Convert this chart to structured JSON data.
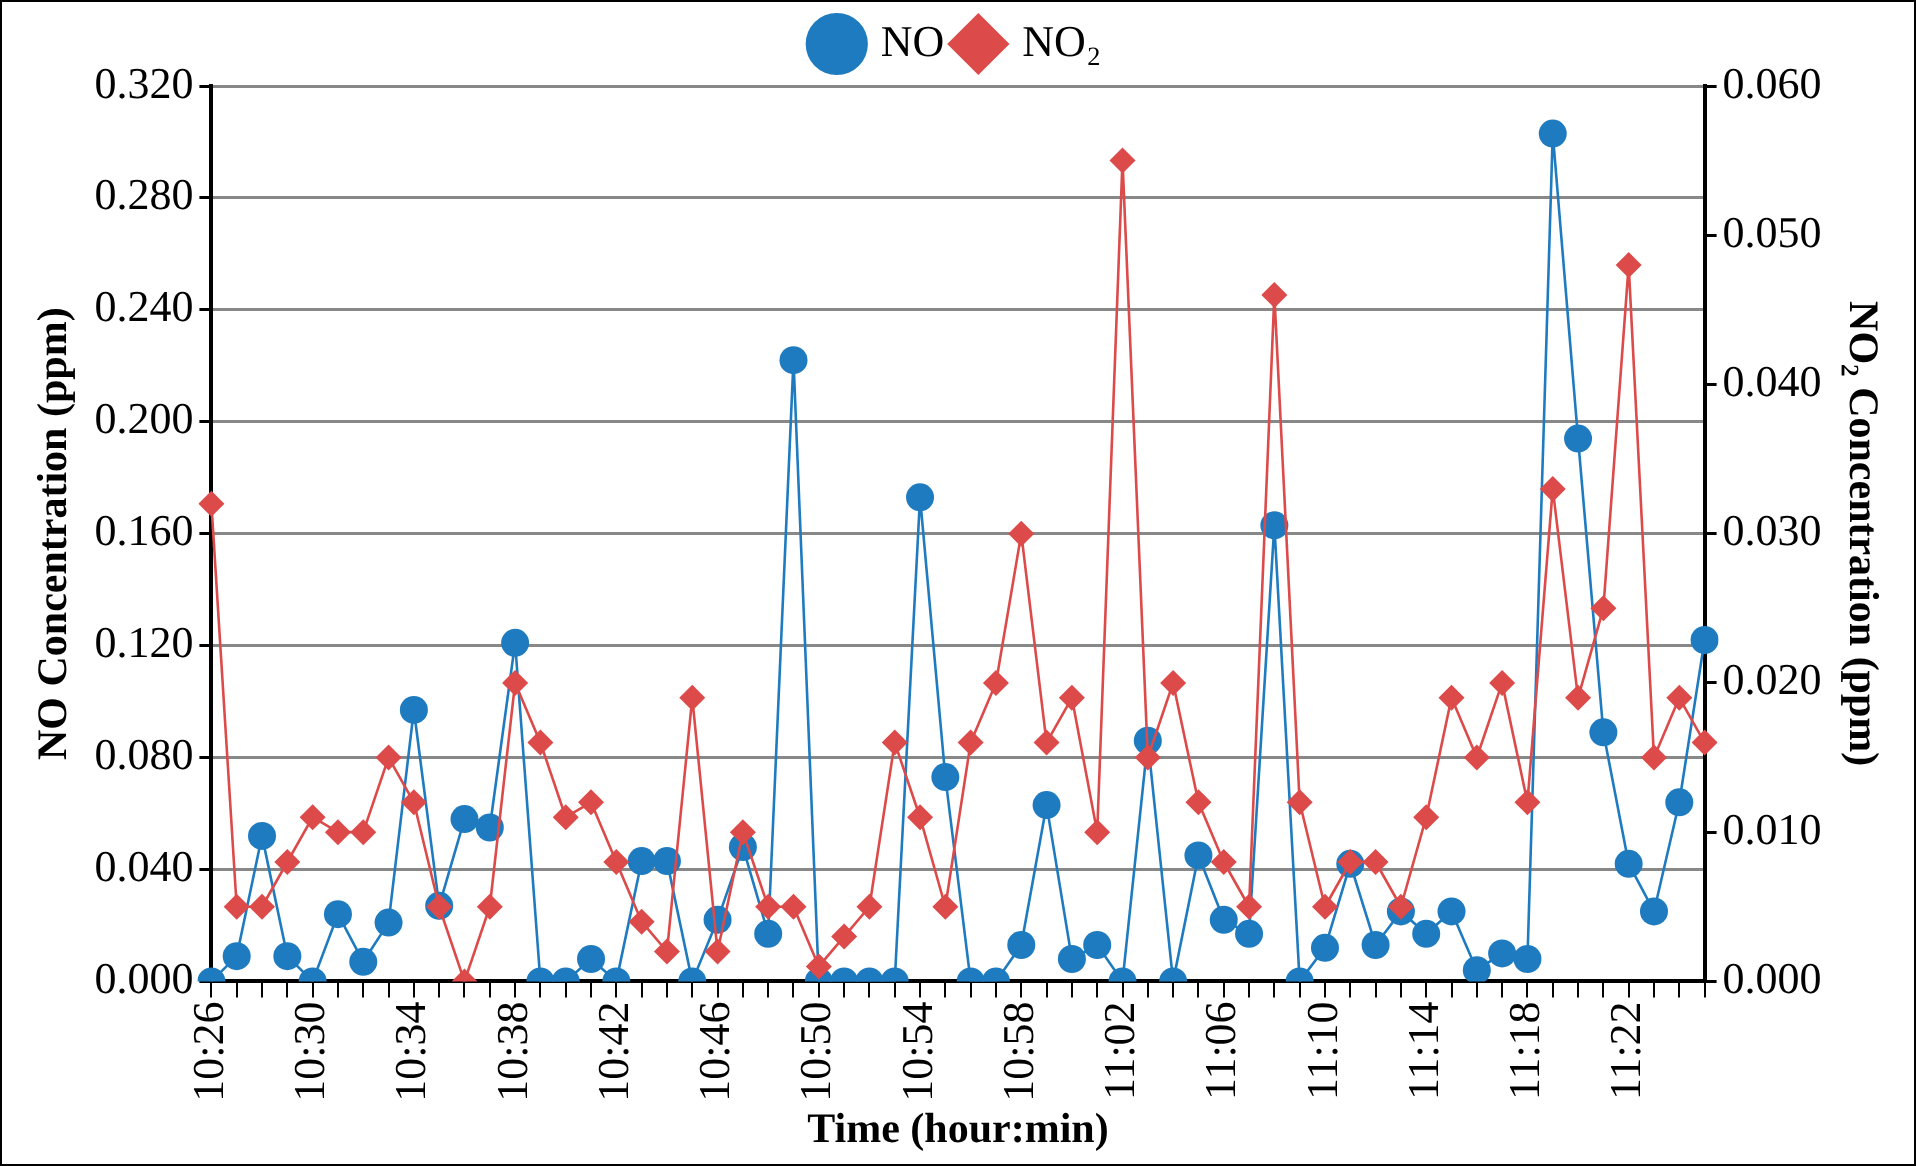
{
  "chart_data": {
    "type": "line",
    "xlabel": "Time (hour:min)",
    "ylabel": "NO Concentration (ppm)",
    "y2label": "NO₂ Concentration (ppm)",
    "categories": [
      "10:26",
      null,
      null,
      null,
      "10:30",
      null,
      null,
      null,
      "10:34",
      null,
      null,
      null,
      "10:38",
      null,
      null,
      null,
      "10:42",
      null,
      null,
      null,
      "10:46",
      null,
      null,
      null,
      "10:50",
      null,
      null,
      null,
      "10:54",
      null,
      null,
      null,
      "10:58",
      null,
      null,
      null,
      "11:02",
      null,
      null,
      null,
      "11:06",
      null,
      null,
      null,
      "11:10",
      null,
      null,
      null,
      "11:14",
      null,
      null,
      null,
      "11:18",
      null,
      null,
      null,
      "11:22",
      null,
      null,
      null
    ],
    "series": [
      {
        "name": "NO",
        "color": "#1f7bbf",
        "marker": "circle",
        "values": [
          0,
          0.009,
          0.052,
          0.009,
          0,
          0.024,
          0.007,
          0.021,
          0.097,
          0.027,
          0.058,
          0.055,
          0.121,
          0,
          0,
          0.008,
          0,
          0.043,
          0.043,
          0,
          0.022,
          0.048,
          0.017,
          0.222,
          0,
          0,
          0,
          0,
          0.173,
          0.073,
          0,
          0,
          0.013,
          0.063,
          0.008,
          0.013,
          0,
          0.086,
          0,
          0.045,
          0.022,
          0.017,
          0.163,
          0,
          0.012,
          0.042,
          0.013,
          0.025,
          0.017,
          0.025,
          0.004,
          0.01,
          0.008,
          0.303,
          0.194,
          0.089,
          0.042,
          0.025,
          0.064,
          0.122
        ]
      },
      {
        "name": "NO₂",
        "color": "#dc4a4a",
        "marker": "diamond",
        "axis": "y2",
        "values": [
          0.032,
          0.005,
          0.005,
          0.008,
          0.011,
          0.01,
          0.01,
          0.015,
          0.012,
          0.005,
          0.0,
          0.005,
          0.02,
          0.016,
          0.011,
          0.012,
          0.008,
          0.004,
          0.002,
          0.019,
          0.002,
          0.01,
          0.005,
          0.005,
          0.001,
          0.003,
          0.005,
          0.016,
          0.011,
          0.005,
          0.016,
          0.02,
          0.03,
          0.016,
          0.019,
          0.01,
          0.055,
          0.015,
          0.02,
          0.012,
          0.008,
          0.005,
          0.046,
          0.012,
          0.005,
          0.008,
          0.008,
          0.005,
          0.011,
          0.019,
          0.015,
          0.02,
          0.012,
          0.033,
          0.019,
          0.025,
          0.048,
          0.015,
          0.019,
          0.016
        ]
      }
    ],
    "ylim": [
      0,
      0.32
    ],
    "yticks": [
      {
        "value": 0,
        "label": "0.000"
      },
      {
        "value": 0.04,
        "label": "0.040"
      },
      {
        "value": 0.08,
        "label": "0.080"
      },
      {
        "value": 0.12,
        "label": "0.120"
      },
      {
        "value": 0.16,
        "label": "0.160"
      },
      {
        "value": 0.2,
        "label": "0.200"
      },
      {
        "value": 0.24,
        "label": "0.240"
      },
      {
        "value": 0.28,
        "label": "0.280"
      },
      {
        "value": 0.32,
        "label": "0.320"
      }
    ],
    "y2lim": [
      0,
      0.06
    ],
    "y2ticks": [
      {
        "value": 0,
        "label": "0.000"
      },
      {
        "value": 0.01,
        "label": "0.010"
      },
      {
        "value": 0.02,
        "label": "0.020"
      },
      {
        "value": 0.03,
        "label": "0.030"
      },
      {
        "value": 0.04,
        "label": "0.040"
      },
      {
        "value": 0.05,
        "label": "0.050"
      },
      {
        "value": 0.06,
        "label": "0.060"
      }
    ],
    "grid": "y",
    "legend": "top",
    "line_style": "solid"
  }
}
